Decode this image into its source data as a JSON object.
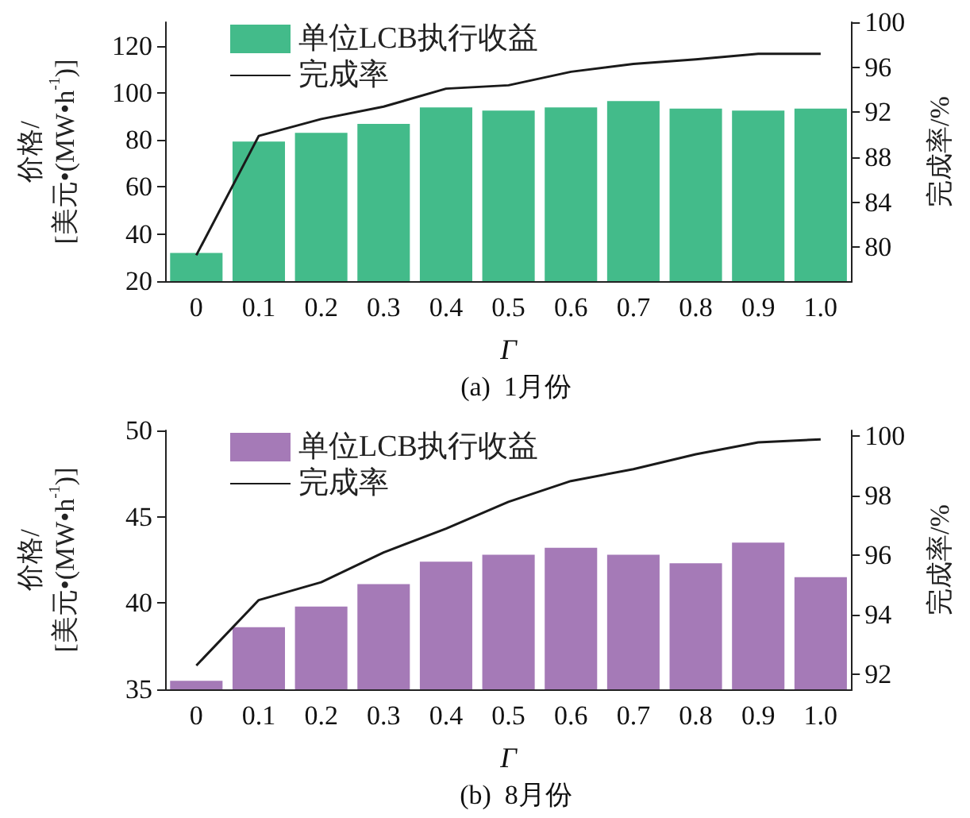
{
  "chart_data": [
    {
      "type": "bar",
      "title": "(a)  1月份",
      "xlabel": "Γ",
      "ylabel": "价格/\n[美元•(MW•h$^{-1}$)]",
      "y2label": "完成率/%",
      "categories": [
        "0",
        "0.1",
        "0.2",
        "0.3",
        "0.4",
        "0.5",
        "0.6",
        "0.7",
        "0.8",
        "0.9",
        "1.0"
      ],
      "series": [
        {
          "name": "单位LCB执行收益",
          "color": "#43bb8a",
          "values": [
            32,
            79.3,
            83,
            86.8,
            93.8,
            92.5,
            93.8,
            96.5,
            93.3,
            92.5,
            93.3
          ]
        },
        {
          "name": "完成率",
          "type": "line",
          "axis": "y2",
          "color": "#1a1a1a",
          "values": [
            79.3,
            89.9,
            91.4,
            92.5,
            94.1,
            94.4,
            95.6,
            96.3,
            96.7,
            97.2,
            97.2
          ]
        }
      ],
      "ylim": [
        20,
        130
      ],
      "yticks": [
        20,
        40,
        60,
        80,
        100,
        120
      ],
      "y2lim": [
        77,
        100
      ],
      "y2ticks": [
        80,
        84,
        88,
        92,
        96,
        100
      ],
      "legend": "top left",
      "grid": false,
      "marker": "none"
    },
    {
      "type": "bar",
      "title": "(b)  8月份",
      "xlabel": "Γ",
      "ylabel": "价格/\n[美元•(MW•h$^{-1}$)]",
      "y2label": "完成率/%",
      "categories": [
        "0",
        "0.1",
        "0.2",
        "0.3",
        "0.4",
        "0.5",
        "0.6",
        "0.7",
        "0.8",
        "0.9",
        "1.0"
      ],
      "series": [
        {
          "name": "单位LCB执行收益",
          "color": "#a57ab7",
          "values": [
            35.5,
            38.6,
            39.8,
            41.1,
            42.4,
            42.8,
            43.2,
            42.8,
            42.3,
            43.5,
            41.5
          ]
        },
        {
          "name": "完成率",
          "type": "line",
          "axis": "y2",
          "color": "#1a1a1a",
          "values": [
            92.3,
            94.5,
            95.1,
            96.1,
            96.9,
            97.8,
            98.5,
            98.9,
            99.4,
            99.8,
            99.9
          ]
        }
      ],
      "ylim": [
        35,
        50
      ],
      "yticks": [
        35,
        40,
        45,
        50
      ],
      "y2lim": [
        91.5,
        100.2
      ],
      "y2ticks": [
        92,
        94,
        96,
        98,
        100
      ],
      "legend": "top left",
      "grid": false,
      "marker": "none"
    }
  ]
}
